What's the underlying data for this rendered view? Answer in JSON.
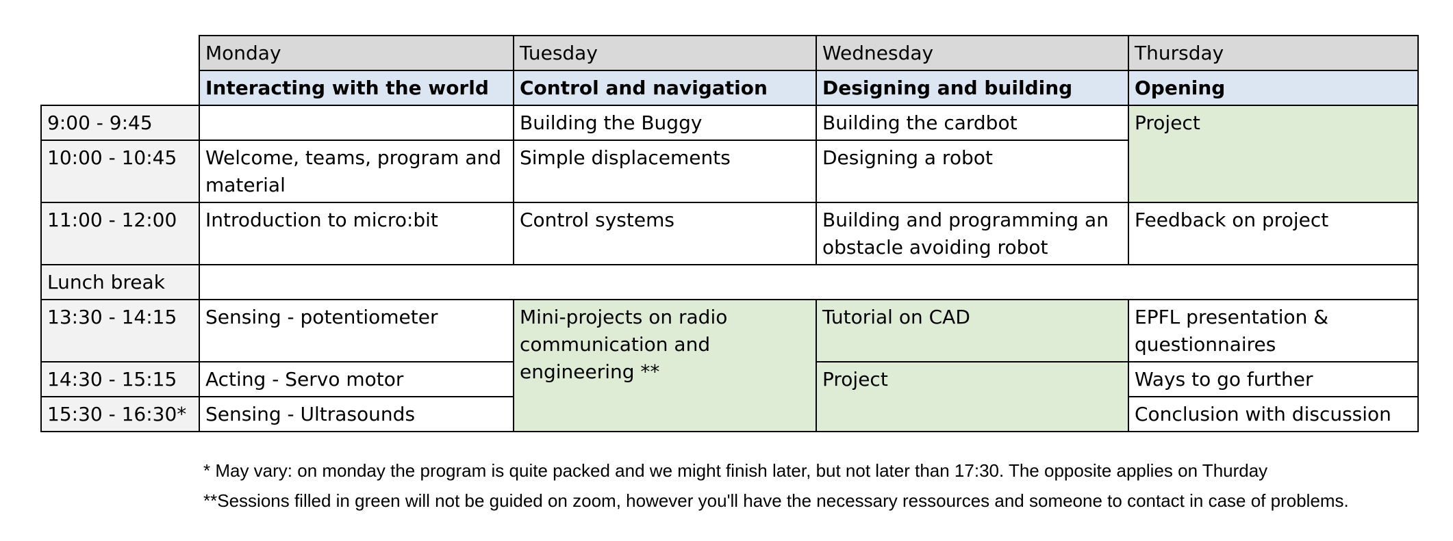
{
  "days": [
    "Monday",
    "Tuesday",
    "Wednesday",
    "Thursday"
  ],
  "themes": [
    "Interacting with the world",
    "Control and navigation",
    "Designing and building",
    "Opening"
  ],
  "times": {
    "t1": "9:00 - 9:45",
    "t2": "10:00 - 10:45",
    "t3": "11:00 - 12:00",
    "lunch": "Lunch break",
    "t4": "13:30 - 14:15",
    "t5": "14:30 - 15:15",
    "t6": "15:30 - 16:30*"
  },
  "sessions": {
    "mon_t2": "Welcome, teams, program and material",
    "mon_t3": "Introduction to micro:bit",
    "mon_t4": "Sensing - potentiometer",
    "mon_t5": "Acting - Servo motor",
    "mon_t6": "Sensing - Ultrasounds",
    "tue_t1": "Building the Buggy",
    "tue_t2": "Simple displacements",
    "tue_t3": "Control systems",
    "tue_afternoon": "Mini-projects on radio communication and engineering **",
    "wed_t1": "Building the cardbot",
    "wed_t2": "Designing a robot",
    "wed_t3": "Building and programming an obstacle avoiding robot",
    "wed_t4": "Tutorial on CAD",
    "wed_t5_t6": "Project",
    "thu_morning": "Project",
    "thu_t3": "Feedback on project",
    "thu_t4": "EPFL presentation & questionnaires",
    "thu_t5": "Ways to go further",
    "thu_t6": "Conclusion with discussion"
  },
  "notes": [
    "* May vary: on monday the program is quite packed and we might finish later, but not later than 17:30. The opposite applies on Thurday",
    "**Sessions filled in green will not be guided on zoom, however you'll have the necessary ressources and someone to contact in case of problems."
  ],
  "colors": {
    "day_header": "#d9d9d9",
    "theme_header": "#dce6f2",
    "time_column": "#f2f2f2",
    "unguided_green": "#deebd5"
  }
}
